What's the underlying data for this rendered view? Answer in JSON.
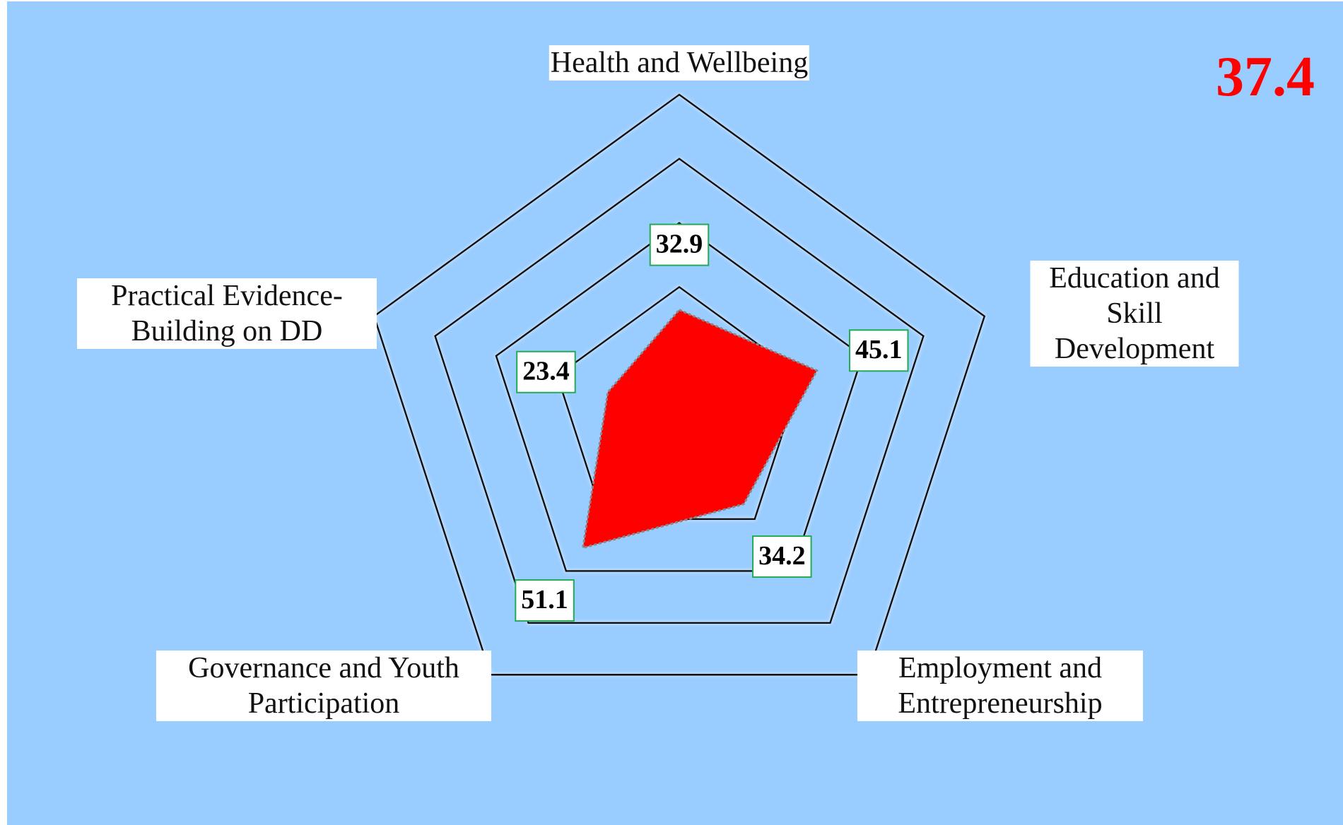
{
  "chart_data": {
    "type": "radar",
    "score": "37.4",
    "categories": [
      "Health and Wellbeing",
      "Education and Skill Development",
      "Employment and Entrepreneurship",
      "Governance and Youth Participation",
      "Practical Evidence-Building on DD"
    ],
    "values": [
      32.9,
      45.1,
      34.2,
      51.1,
      23.4
    ],
    "color": "#ff0000",
    "ylim": [
      0,
      100
    ],
    "yticks": [
      40,
      60,
      80,
      100
    ]
  }
}
